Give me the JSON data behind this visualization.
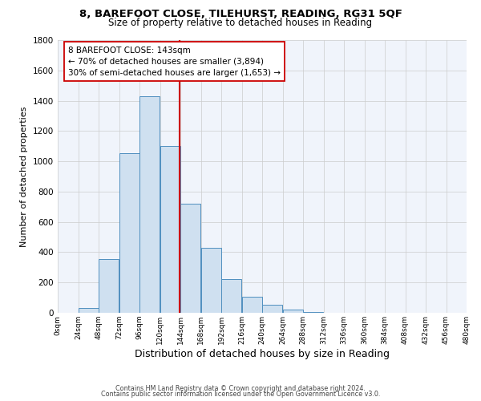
{
  "title": "8, BAREFOOT CLOSE, TILEHURST, READING, RG31 5QF",
  "subtitle": "Size of property relative to detached houses in Reading",
  "xlabel": "Distribution of detached houses by size in Reading",
  "ylabel": "Number of detached properties",
  "bar_values": [
    0,
    30,
    355,
    1055,
    1430,
    1100,
    720,
    430,
    220,
    105,
    55,
    20,
    5,
    2,
    1,
    0,
    0,
    0,
    0,
    0
  ],
  "bin_edges": [
    0,
    24,
    48,
    72,
    96,
    120,
    144,
    168,
    192,
    216,
    240,
    264,
    288,
    312,
    336,
    360,
    384,
    408,
    432,
    456,
    480
  ],
  "tick_labels": [
    "0sqm",
    "24sqm",
    "48sqm",
    "72sqm",
    "96sqm",
    "120sqm",
    "144sqm",
    "168sqm",
    "192sqm",
    "216sqm",
    "240sqm",
    "264sqm",
    "288sqm",
    "312sqm",
    "336sqm",
    "360sqm",
    "384sqm",
    "408sqm",
    "432sqm",
    "456sqm",
    "480sqm"
  ],
  "bar_color": "#cfe0f0",
  "bar_edge_color": "#4f8fbf",
  "grid_color": "#cccccc",
  "vline_x": 143,
  "vline_color": "#cc0000",
  "annotation_title": "8 BAREFOOT CLOSE: 143sqm",
  "annotation_line1": "← 70% of detached houses are smaller (3,894)",
  "annotation_line2": "30% of semi-detached houses are larger (1,653) →",
  "annotation_box_color": "#ffffff",
  "annotation_box_edge": "#cc0000",
  "ylim": [
    0,
    1800
  ],
  "yticks": [
    0,
    200,
    400,
    600,
    800,
    1000,
    1200,
    1400,
    1600,
    1800
  ],
  "footer1": "Contains HM Land Registry data © Crown copyright and database right 2024.",
  "footer2": "Contains public sector information licensed under the Open Government Licence v3.0.",
  "background_color": "#ffffff",
  "plot_bg_color": "#f0f4fb"
}
